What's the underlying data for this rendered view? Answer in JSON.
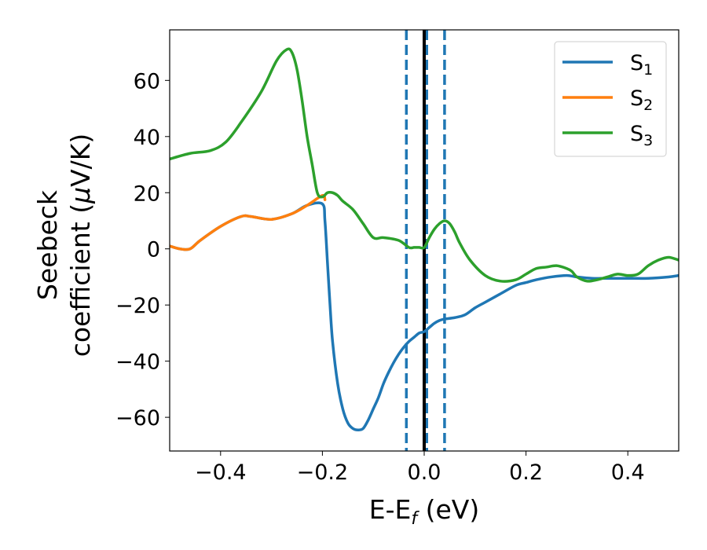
{
  "chart_data": {
    "type": "line",
    "xlabel": "E-E",
    "xlabel_sub": "f",
    "xlabel_unit": " (eV)",
    "ylabel_line1": "Seebeck",
    "ylabel_line2_pre": "coefficient  (",
    "ylabel_mu": "μ",
    "ylabel_line2_post": "V/K)",
    "xlim": [
      -0.5,
      0.5
    ],
    "ylim": [
      -72,
      78
    ],
    "xticks": [
      -0.4,
      -0.2,
      0.0,
      0.2,
      0.4
    ],
    "xtick_labels": [
      "−0.4",
      "−0.2",
      "0.0",
      "0.2",
      "0.4"
    ],
    "yticks": [
      -60,
      -40,
      -20,
      0,
      20,
      40,
      60
    ],
    "ytick_labels": [
      "−60",
      "−40",
      "−20",
      "0",
      "20",
      "40",
      "60"
    ],
    "grid": false,
    "legend_position": "top-right",
    "vlines": [
      {
        "x": -0.035,
        "style": "dashed",
        "color": "#1f77b4"
      },
      {
        "x": 0.005,
        "style": "dashed",
        "color": "#1f77b4"
      },
      {
        "x": 0.04,
        "style": "dashed",
        "color": "#1f77b4"
      },
      {
        "x": 0.0,
        "style": "solid",
        "color": "#000000"
      }
    ],
    "series": [
      {
        "name": "S",
        "sub": "1",
        "color": "#1f77b4",
        "x": [
          -0.5,
          -0.48,
          -0.46,
          -0.44,
          -0.4,
          -0.36,
          -0.34,
          -0.3,
          -0.26,
          -0.23,
          -0.2,
          -0.195,
          -0.19,
          -0.185,
          -0.18,
          -0.17,
          -0.16,
          -0.15,
          -0.14,
          -0.13,
          -0.12,
          -0.11,
          -0.1,
          -0.09,
          -0.08,
          -0.07,
          -0.06,
          -0.05,
          -0.04,
          -0.03,
          -0.02,
          -0.01,
          0.0,
          0.01,
          0.02,
          0.03,
          0.04,
          0.06,
          0.08,
          0.1,
          0.12,
          0.15,
          0.18,
          0.2,
          0.22,
          0.25,
          0.28,
          0.3,
          0.33,
          0.36,
          0.4,
          0.44,
          0.48,
          0.5
        ],
        "y": [
          1,
          0,
          0,
          3,
          8,
          11.5,
          11.5,
          10.5,
          12.5,
          15.5,
          16,
          10,
          -5,
          -20,
          -33,
          -48,
          -57,
          -62,
          -64,
          -64.5,
          -64,
          -61,
          -57,
          -53,
          -48,
          -44,
          -40.5,
          -37.5,
          -35,
          -33,
          -31.5,
          -30,
          -29.5,
          -28,
          -26.5,
          -25.5,
          -25,
          -24.5,
          -23.5,
          -21,
          -19,
          -16,
          -13,
          -12,
          -11,
          -10,
          -9.5,
          -10,
          -10.5,
          -10.5,
          -10.5,
          -10.5,
          -10,
          -9.5
        ]
      },
      {
        "name": "S",
        "sub": "2",
        "color": "#ff7f0e",
        "x": [
          -0.5,
          -0.48,
          -0.46,
          -0.44,
          -0.4,
          -0.36,
          -0.34,
          -0.3,
          -0.26,
          -0.23,
          -0.2,
          -0.195
        ],
        "y": [
          1,
          0,
          0,
          3,
          8,
          11.5,
          11.5,
          10.5,
          12.5,
          15.5,
          19,
          17.5
        ]
      },
      {
        "name": "S",
        "sub": "3",
        "color": "#2ca02c",
        "x": [
          -0.5,
          -0.46,
          -0.42,
          -0.39,
          -0.36,
          -0.32,
          -0.29,
          -0.27,
          -0.26,
          -0.25,
          -0.24,
          -0.23,
          -0.22,
          -0.21,
          -0.2,
          -0.19,
          -0.18,
          -0.17,
          -0.16,
          -0.14,
          -0.12,
          -0.1,
          -0.08,
          -0.05,
          -0.03,
          -0.02,
          -0.01,
          0.0,
          0.01,
          0.02,
          0.03,
          0.04,
          0.05,
          0.06,
          0.07,
          0.09,
          0.12,
          0.15,
          0.18,
          0.2,
          0.22,
          0.24,
          0.26,
          0.28,
          0.29,
          0.3,
          0.32,
          0.34,
          0.36,
          0.38,
          0.4,
          0.42,
          0.44,
          0.46,
          0.48,
          0.5
        ],
        "y": [
          32,
          34,
          35,
          38,
          45,
          56,
          67,
          71,
          70,
          64,
          53,
          40,
          30,
          20,
          18.5,
          20,
          20,
          19,
          17,
          14,
          9,
          4,
          4,
          3,
          0.5,
          0.5,
          0.5,
          0.5,
          4,
          7,
          9,
          10,
          9,
          6,
          2,
          -4,
          -9.5,
          -11.5,
          -11,
          -9,
          -7,
          -6.5,
          -6,
          -7,
          -8,
          -10,
          -11.5,
          -11,
          -10,
          -9,
          -9.5,
          -9,
          -6,
          -4,
          -3,
          -4
        ]
      }
    ]
  }
}
